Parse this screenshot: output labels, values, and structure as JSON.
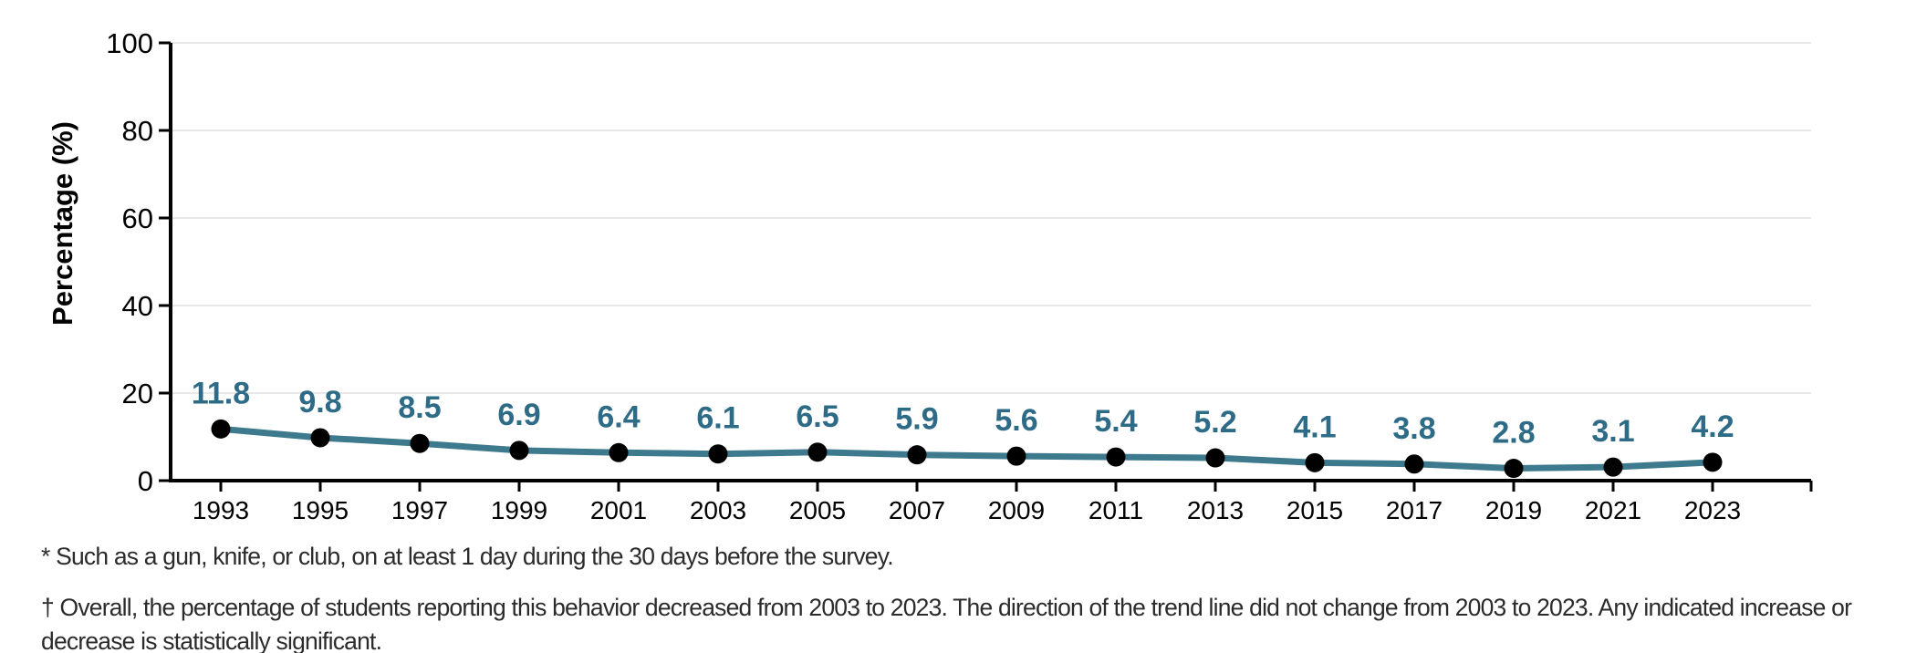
{
  "chart_data": {
    "type": "line",
    "x": [
      "1993",
      "1995",
      "1997",
      "1999",
      "2001",
      "2003",
      "2005",
      "2007",
      "2009",
      "2011",
      "2013",
      "2015",
      "2017",
      "2019",
      "2021",
      "2023"
    ],
    "values": [
      11.8,
      9.8,
      8.5,
      6.9,
      6.4,
      6.1,
      6.5,
      5.9,
      5.6,
      5.4,
      5.2,
      4.1,
      3.8,
      2.8,
      3.1,
      4.2
    ],
    "title": "",
    "xlabel": "",
    "ylabel": "Percentage (%)",
    "ylim": [
      0,
      100
    ],
    "yticks": [
      0,
      20,
      40,
      60,
      80,
      100
    ],
    "grid": true,
    "legend": false,
    "point_labels_shown": true
  },
  "colors": {
    "line": "#3d7a8e",
    "marker": "#000000",
    "value_label": "#2e6b87",
    "grid": "#e8e8e8",
    "axis": "#000000",
    "tick_label": "#000000",
    "footnote": "#2b2b2b",
    "background": "#ffffff"
  },
  "footnotes": {
    "note1": "* Such as a gun, knife, or club, on at least 1 day during the 30 days before the survey.",
    "note2": "† Overall, the percentage of students reporting this behavior decreased from 2003 to 2023. The direction of the trend line did not change from 2003 to 2023. Any indicated increase or decrease is statistically significant."
  }
}
